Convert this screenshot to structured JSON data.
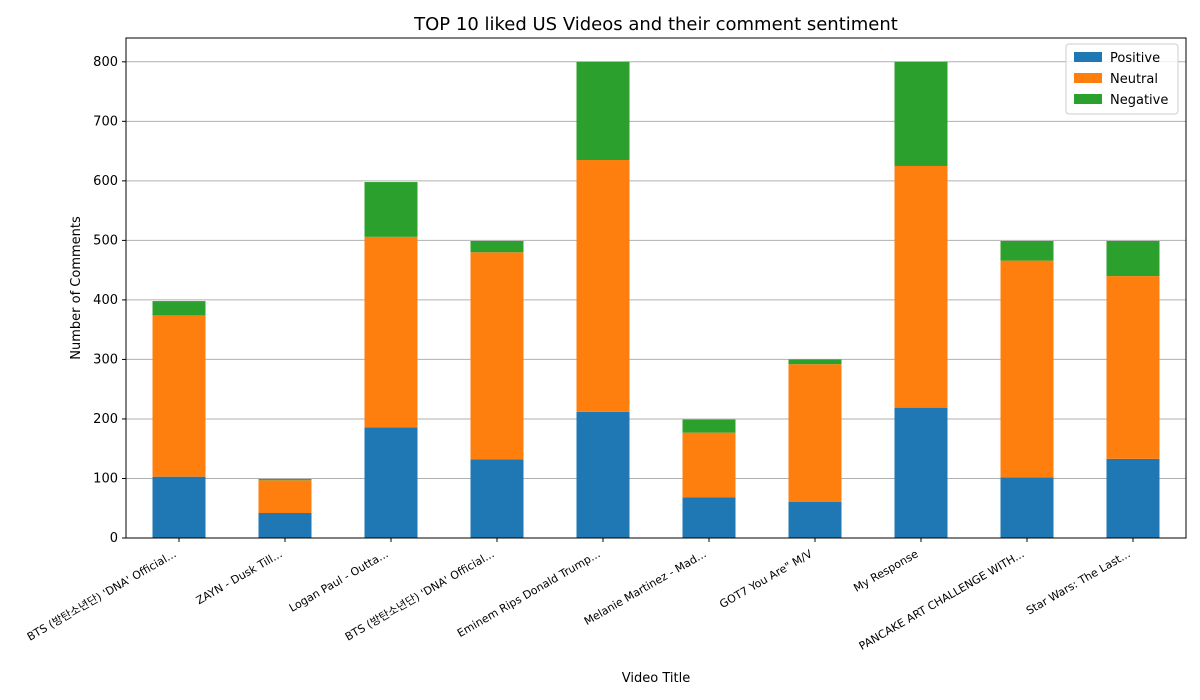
{
  "chart_data": {
    "type": "bar",
    "stacked": true,
    "title": "TOP 10 liked US Videos and their comment sentiment",
    "xlabel": "Video Title",
    "ylabel": "Number of Comments",
    "ylim": [
      0,
      840
    ],
    "yticks": [
      0,
      100,
      200,
      300,
      400,
      500,
      600,
      700,
      800
    ],
    "grid": "horizontal",
    "legend_position": "top-right",
    "categories": [
      "BTS (방탄소년단) 'DNA' Official...",
      "ZAYN - Dusk Till...",
      "Logan Paul - Outta...",
      "BTS (방탄소년단) 'DNA' Official...",
      "Eminem Rips Donald Trump...",
      "Melanie Martinez - Mad...",
      "GOT7 You Are\" M/V",
      "My Response",
      "PANCAKE ART CHALLENGE WITH...",
      "Star Wars: The Last..."
    ],
    "series": [
      {
        "name": "Positive",
        "color": "#1f77b4",
        "values": [
          103,
          42,
          186,
          132,
          212,
          68,
          61,
          219,
          102,
          133
        ]
      },
      {
        "name": "Neutral",
        "color": "#ff7f0e",
        "values": [
          271,
          55,
          320,
          348,
          423,
          109,
          231,
          406,
          364,
          307
        ]
      },
      {
        "name": "Negative",
        "color": "#2ca02c",
        "values": [
          24,
          2,
          92,
          19,
          165,
          22,
          8,
          175,
          33,
          59
        ]
      }
    ]
  }
}
